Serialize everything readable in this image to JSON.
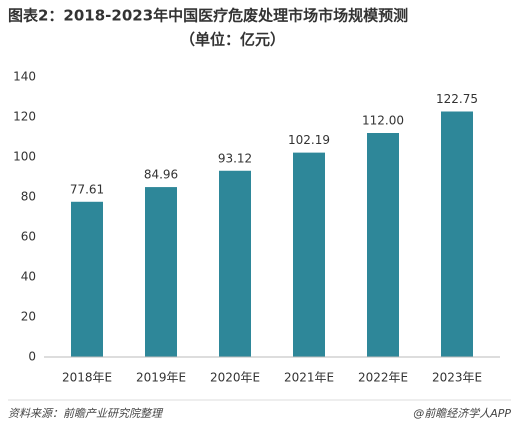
{
  "chart_data": {
    "type": "bar",
    "title": "图表2：2018-2023年中国医疗危废处理市场市场规模预测",
    "subtitle": "（单位：亿元）",
    "categories": [
      "2018年E",
      "2019年E",
      "2020年E",
      "2021年E",
      "2022年E",
      "2023年E"
    ],
    "values": [
      77.61,
      84.96,
      93.12,
      102.19,
      112,
      122.75
    ],
    "value_labels": [
      "77.61",
      "84.96",
      "93.12",
      "102.19",
      "112.00",
      "122.75"
    ],
    "color": "#2e8799",
    "ylim": [
      0,
      140
    ],
    "yticks": [
      0,
      20,
      40,
      60,
      80,
      100,
      120,
      140
    ],
    "grid": false,
    "source": "资料来源：前瞻产业研究院整理",
    "credit": "@前瞻经济学人APP"
  }
}
